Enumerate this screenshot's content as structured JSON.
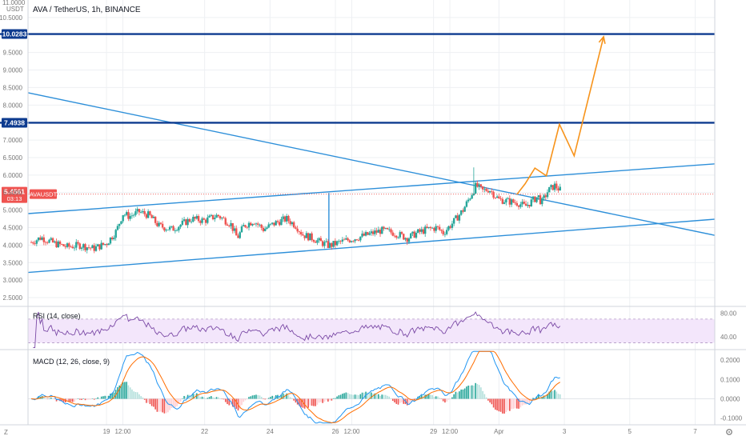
{
  "chart_data": {
    "type": "candlestick",
    "title": "AVA / TetherUS, 1h, BINANCE",
    "price_axis": {
      "unit": "USDT",
      "top_label": "11.0000",
      "ticks": [
        "10.5000",
        "9.5000",
        "9.0000",
        "8.5000",
        "8.0000",
        "7.0000",
        "6.5000",
        "6.0000",
        "5.5000",
        "5.0000",
        "4.5000",
        "4.0000",
        "3.5000",
        "3.0000",
        "2.5000"
      ],
      "ylim": [
        2.25,
        11.0
      ]
    },
    "time_axis": {
      "ticks": [
        {
          "label": "19",
          "t": 2.0
        },
        {
          "label": "12:00",
          "t": 2.5
        },
        {
          "label": "22",
          "t": 5.0
        },
        {
          "label": "24",
          "t": 7.0
        },
        {
          "label": "26",
          "t": 9.0
        },
        {
          "label": "12:00",
          "t": 9.5
        },
        {
          "label": "29",
          "t": 12.0
        },
        {
          "label": "12:00",
          "t": 12.5
        },
        {
          "label": "Apr",
          "t": 14.0
        },
        {
          "label": "3",
          "t": 16.0
        },
        {
          "label": "5",
          "t": 18.0
        },
        {
          "label": "7",
          "t": 20.0
        }
      ],
      "xlim": [
        -0.4,
        20.6
      ]
    },
    "price_lines": [
      {
        "label": "10.0283",
        "value": 10.0283,
        "color": "#0d3b8f"
      },
      {
        "label": "7.4938",
        "value": 7.4938,
        "color": "#0d3b8f"
      }
    ],
    "current_price": {
      "value": "5.4561",
      "symbol": "AVAUSDT",
      "countdown": "03:13",
      "color": "#ef5350"
    },
    "trendlines": [
      {
        "name": "descending",
        "points": [
          [
            -0.4,
            8.35
          ],
          [
            20.6,
            4.28
          ]
        ],
        "color": "#2d8fd9"
      },
      {
        "name": "channel-upper",
        "points": [
          [
            -0.4,
            4.9
          ],
          [
            20.6,
            6.32
          ]
        ],
        "color": "#2d8fd9"
      },
      {
        "name": "channel-lower",
        "points": [
          [
            -0.4,
            3.22
          ],
          [
            20.6,
            4.74
          ]
        ],
        "color": "#2d8fd9"
      },
      {
        "name": "spike",
        "points": [
          [
            8.8,
            5.49
          ],
          [
            8.8,
            3.95
          ]
        ],
        "color": "#2d8fd9"
      }
    ],
    "projection": {
      "color": "#f7931a",
      "points": [
        [
          14.55,
          5.45
        ],
        [
          14.8,
          5.75
        ],
        [
          15.1,
          6.2
        ],
        [
          15.45,
          5.98
        ],
        [
          15.85,
          7.45
        ],
        [
          16.3,
          6.55
        ],
        [
          17.2,
          9.95
        ]
      ]
    },
    "price_anchors": [
      [
        -0.3,
        4.08
      ],
      [
        0.0,
        4.22
      ],
      [
        0.4,
        4.05
      ],
      [
        0.8,
        3.95
      ],
      [
        1.2,
        4.0
      ],
      [
        1.6,
        3.9
      ],
      [
        2.0,
        4.05
      ],
      [
        2.3,
        4.4
      ],
      [
        2.5,
        4.9
      ],
      [
        2.7,
        4.82
      ],
      [
        3.0,
        4.95
      ],
      [
        3.3,
        4.85
      ],
      [
        3.6,
        4.55
      ],
      [
        4.0,
        4.45
      ],
      [
        4.3,
        4.6
      ],
      [
        4.6,
        4.75
      ],
      [
        5.0,
        4.7
      ],
      [
        5.4,
        4.85
      ],
      [
        5.8,
        4.6
      ],
      [
        6.0,
        4.2
      ],
      [
        6.2,
        4.55
      ],
      [
        6.5,
        4.7
      ],
      [
        6.8,
        4.45
      ],
      [
        7.2,
        4.65
      ],
      [
        7.5,
        4.75
      ],
      [
        7.8,
        4.55
      ],
      [
        8.0,
        4.3
      ],
      [
        8.3,
        4.2
      ],
      [
        8.5,
        4.1
      ],
      [
        8.8,
        3.98
      ],
      [
        9.2,
        4.1
      ],
      [
        9.6,
        4.2
      ],
      [
        10.0,
        4.3
      ],
      [
        10.4,
        4.42
      ],
      [
        10.8,
        4.35
      ],
      [
        11.2,
        4.2
      ],
      [
        11.5,
        4.35
      ],
      [
        11.8,
        4.45
      ],
      [
        12.1,
        4.5
      ],
      [
        12.3,
        4.35
      ],
      [
        12.6,
        4.65
      ],
      [
        12.9,
        5.0
      ],
      [
        13.1,
        5.35
      ],
      [
        13.3,
        5.7
      ],
      [
        13.5,
        5.55
      ],
      [
        13.7,
        5.6
      ],
      [
        14.0,
        5.3
      ],
      [
        14.3,
        5.25
      ],
      [
        14.6,
        5.2
      ],
      [
        14.8,
        5.1
      ],
      [
        15.0,
        5.25
      ],
      [
        15.2,
        5.4
      ],
      [
        15.3,
        5.2
      ],
      [
        15.5,
        5.55
      ],
      [
        15.7,
        5.7
      ],
      [
        15.9,
        5.55
      ]
    ],
    "rsi": {
      "name": "RSI (14, close)",
      "levels": [
        70,
        30
      ],
      "ticks": [
        "80.00",
        "40.00"
      ],
      "ylim": [
        20,
        90
      ],
      "color": "#7b4aa6"
    },
    "macd": {
      "name": "MACD (12, 26, close, 9)",
      "ticks": [
        "0.2000",
        "0.1000",
        "0.0000",
        "-0.1000"
      ],
      "ylim": [
        -0.13,
        0.25
      ],
      "macd_color": "#2196f3",
      "signal_color": "#ff6d00"
    }
  },
  "tools": {
    "tz_label": "Z"
  }
}
